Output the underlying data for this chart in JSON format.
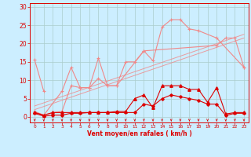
{
  "bg_color": "#cceeff",
  "grid_color": "#aacccc",
  "light_red": "#f08888",
  "dark_red": "#dd0000",
  "xlabel": "Vent moyen/en rafales ( km/h )",
  "ylim": [
    -1.5,
    31
  ],
  "yticks": [
    0,
    5,
    10,
    15,
    20,
    25,
    30
  ],
  "xlim": [
    -0.5,
    23.5
  ],
  "line_drop": {
    "x": [
      0,
      1
    ],
    "y": [
      15.5,
      7.0
    ]
  },
  "line_peak": {
    "x": [
      0,
      1,
      2,
      3,
      4,
      5,
      6,
      7,
      8,
      9,
      12,
      13,
      14,
      15,
      16,
      17,
      18,
      20,
      23
    ],
    "y": [
      1.5,
      0.5,
      1.2,
      1.5,
      8.5,
      8.0,
      8.0,
      10.5,
      8.5,
      8.5,
      18.0,
      15.3,
      24.5,
      26.5,
      26.5,
      24.0,
      23.5,
      21.5,
      13.5
    ]
  },
  "line_mid": {
    "x": [
      0,
      1,
      3,
      4,
      5,
      6,
      7,
      8,
      9,
      10,
      11,
      12,
      20,
      21,
      22,
      23
    ],
    "y": [
      1.2,
      0.5,
      7.0,
      13.5,
      8.0,
      8.0,
      16.0,
      8.5,
      8.5,
      15.0,
      15.0,
      18.0,
      19.5,
      21.5,
      21.5,
      13.5
    ]
  },
  "trend1": {
    "x": [
      0,
      23
    ],
    "y": [
      2.0,
      21.5
    ]
  },
  "trend2": {
    "x": [
      0,
      23
    ],
    "y": [
      3.0,
      22.5
    ]
  },
  "dark1_y": [
    1.2,
    0.5,
    1.2,
    1.2,
    1.2,
    1.2,
    1.2,
    1.2,
    1.2,
    1.5,
    1.5,
    5.0,
    6.0,
    2.5,
    8.5,
    8.5,
    8.5,
    7.5,
    7.5,
    4.0,
    8.0,
    0.8,
    1.2,
    1.2
  ],
  "dark2_y": [
    1.0,
    0.2,
    0.5,
    0.5,
    1.0,
    1.0,
    1.2,
    1.2,
    1.2,
    1.2,
    1.2,
    1.2,
    3.5,
    3.0,
    5.0,
    6.0,
    5.5,
    5.0,
    4.5,
    3.5,
    3.5,
    0.4,
    1.0,
    1.0
  ],
  "arrows_y": [
    -0.9,
    -0.9,
    -0.9,
    -0.9,
    -0.9,
    -0.9,
    -0.9,
    -0.9,
    -0.9,
    -0.9,
    -0.9,
    -0.9,
    -0.9,
    -0.9,
    -0.9,
    -0.9,
    -0.9,
    -0.9,
    -0.9,
    -0.9,
    -0.9,
    -0.9,
    -0.9,
    -0.9
  ]
}
